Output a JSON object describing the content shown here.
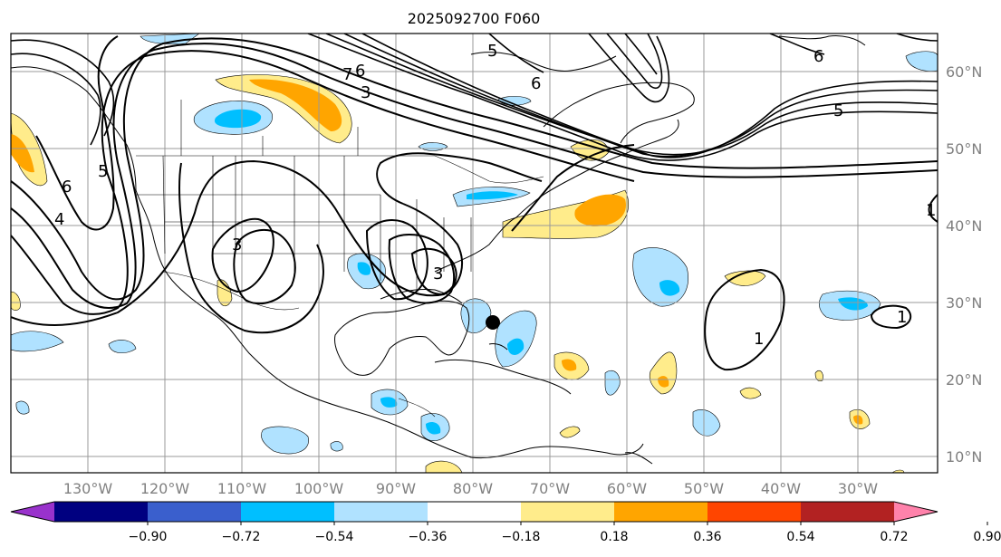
{
  "title": "2025092700 F060",
  "lat_labels": [
    "60°N",
    "50°N",
    "40°N",
    "30°N",
    "20°N",
    "10°N"
  ],
  "lon_labels": [
    "130°W",
    "120°W",
    "110°W",
    "100°W",
    "90°W",
    "80°W",
    "70°W",
    "60°W",
    "50°W",
    "40°W",
    "30°W"
  ],
  "contour_labels": [
    "6",
    "5",
    "4",
    "3",
    "3",
    "6",
    "5",
    "6",
    "6",
    "5",
    "3",
    "1",
    "1",
    "1",
    "7"
  ],
  "colorbar": {
    "ticks": [
      "−0.90",
      "−0.72",
      "−0.54",
      "−0.36",
      "−0.18",
      "0.18",
      "0.36",
      "0.54",
      "0.72",
      "0.90"
    ],
    "colors": [
      "#9932cc",
      "#000080",
      "#3a5fcd",
      "#00bfff",
      "#b0e2ff",
      "#ffffff",
      "#ffec8b",
      "#ffa500",
      "#ff4500",
      "#b22222",
      "#ff82ab"
    ]
  },
  "marker": "storm-center"
}
